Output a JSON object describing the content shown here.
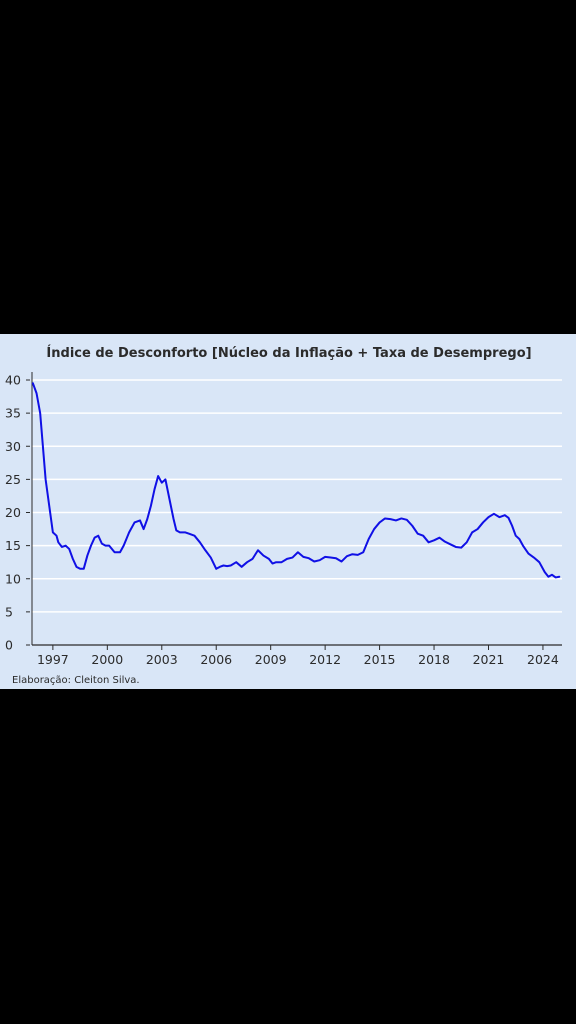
{
  "chart_data": {
    "type": "line",
    "title": "Índice de Desconforto [Núcleo da Inflação + Taxa de Desemprego]",
    "xlabel": "",
    "ylabel": "",
    "credit": "Elaboração: Cleiton Silva.",
    "xlim": [
      1995.85,
      2025.05
    ],
    "ylim": [
      0,
      40
    ],
    "y_ticks": [
      0,
      5,
      10,
      15,
      20,
      25,
      30,
      35,
      40
    ],
    "x_ticks": [
      1997,
      2000,
      2003,
      2006,
      2009,
      2012,
      2015,
      2018,
      2021,
      2024
    ],
    "grid": "horizontal",
    "colors": {
      "line": "#1010e6",
      "background": "#d9e6f7",
      "gridline": "#ffffff"
    },
    "series": [
      {
        "x": [
          1995.9,
          1996.1,
          1996.3,
          1996.45,
          1996.6,
          1996.8,
          1997.0,
          1997.2,
          1997.3,
          1997.5,
          1997.7,
          1997.9,
          1998.1,
          1998.3,
          1998.5,
          1998.7,
          1998.9,
          1999.1,
          1999.3,
          1999.5,
          1999.7,
          1999.9,
          2000.1,
          2000.4,
          2000.7,
          2000.9,
          2001.2,
          2001.5,
          2001.8,
          2002.0,
          2002.2,
          2002.4,
          2002.6,
          2002.8,
          2003.0,
          2003.2,
          2003.35,
          2003.5,
          2003.65,
          2003.8,
          2004.0,
          2004.3,
          2004.5,
          2004.8,
          2005.1,
          2005.4,
          2005.7,
          2006.0,
          2006.2,
          2006.4,
          2006.6,
          2006.8,
          2007.1,
          2007.4,
          2007.7,
          2008.0,
          2008.3,
          2008.6,
          2008.9,
          2009.1,
          2009.3,
          2009.6,
          2009.9,
          2010.2,
          2010.5,
          2010.8,
          2011.1,
          2011.4,
          2011.7,
          2012.0,
          2012.3,
          2012.6,
          2012.9,
          2013.2,
          2013.5,
          2013.8,
          2014.1,
          2014.4,
          2014.7,
          2015.0,
          2015.3,
          2015.6,
          2015.9,
          2016.2,
          2016.5,
          2016.8,
          2017.1,
          2017.4,
          2017.7,
          2018.0,
          2018.3,
          2018.6,
          2018.9,
          2019.2,
          2019.5,
          2019.8,
          2020.1,
          2020.4,
          2020.7,
          2021.0,
          2021.3,
          2021.6,
          2021.9,
          2022.1,
          2022.3,
          2022.5,
          2022.7,
          2022.9,
          2023.2,
          2023.5,
          2023.8,
          2024.1,
          2024.3,
          2024.5,
          2024.7,
          2024.9
        ],
        "y": [
          39.5,
          38,
          35,
          30,
          25,
          21,
          17,
          16.5,
          15.5,
          14.8,
          15,
          14.5,
          13,
          11.8,
          11.5,
          11.5,
          13.5,
          15,
          16.2,
          16.5,
          15.3,
          15,
          15,
          14,
          14,
          15,
          17,
          18.5,
          18.8,
          17.5,
          19,
          21,
          23.5,
          25.5,
          24.5,
          25,
          23,
          21,
          19,
          17.3,
          17,
          17,
          16.8,
          16.5,
          15.5,
          14.3,
          13.2,
          11.5,
          11.8,
          12,
          11.9,
          12,
          12.5,
          11.8,
          12.5,
          13,
          14.3,
          13.5,
          13,
          12.3,
          12.5,
          12.5,
          13,
          13.2,
          14,
          13.3,
          13.1,
          12.6,
          12.8,
          13.3,
          13.2,
          13.1,
          12.6,
          13.4,
          13.7,
          13.6,
          14,
          16,
          17.5,
          18.5,
          19.1,
          19,
          18.8,
          19.1,
          18.9,
          18,
          16.8,
          16.5,
          15.5,
          15.8,
          16.2,
          15.6,
          15.2,
          14.8,
          14.7,
          15.5,
          17,
          17.5,
          18.5,
          19.3,
          19.8,
          19.3,
          19.6,
          19.2,
          18,
          16.5,
          16,
          15,
          13.8,
          13.2,
          12.5,
          11,
          10.3,
          10.6,
          10.2,
          10.3
        ]
      }
    ]
  }
}
